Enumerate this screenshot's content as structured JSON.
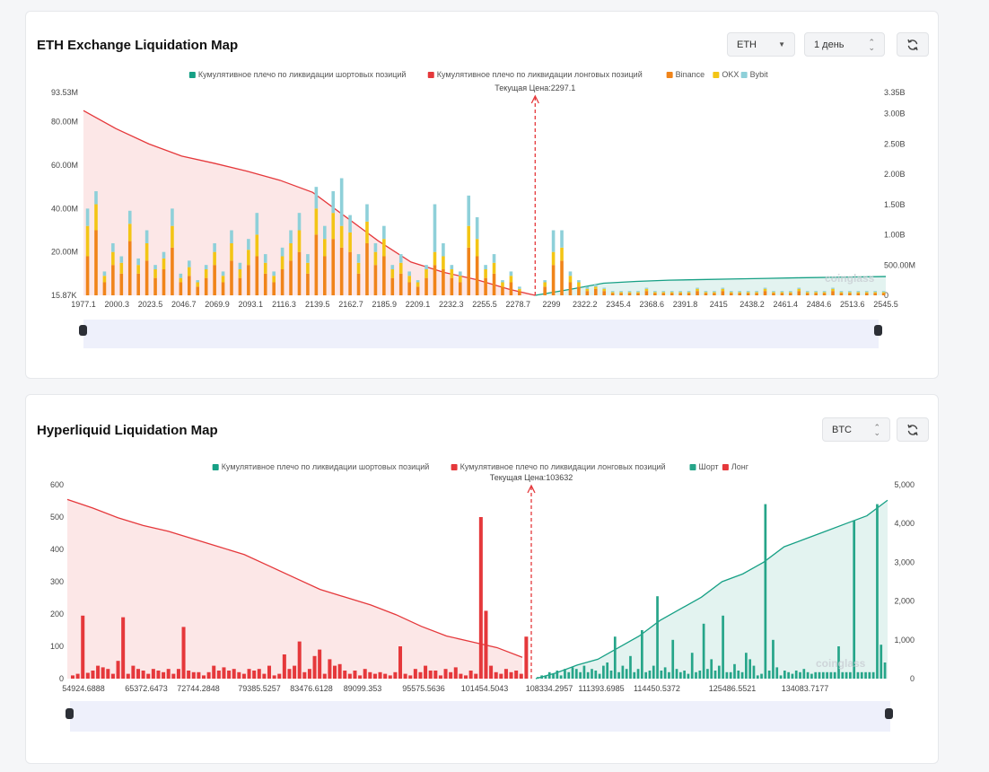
{
  "eth_card": {
    "title": "ETH Exchange Liquidation Map",
    "coin_select": "ETH",
    "period_select": "1 день",
    "refresh_icon": "refresh-icon"
  },
  "hl_card": {
    "title": "Hyperliquid Liquidation Map",
    "coin_select": "BTC",
    "refresh_icon": "refresh-icon"
  },
  "colors": {
    "short_cum": "#16a085",
    "long_cum": "#e5383b",
    "binance": "#f0841a",
    "okx": "#f3c515",
    "bybit": "#8ed0d9",
    "short_bar": "#26a589",
    "long_bar": "#e5383b",
    "current_price": "#e5383b"
  },
  "chart_data": [
    {
      "type": "bar",
      "title": "",
      "legend": [
        "Кумулятивное плечо по ликвидации шортовых позиций",
        "Кумулятивное плечо по ликвидации лонговых позиций",
        "Binance",
        "OKX",
        "Bybit"
      ],
      "legend_position": "top-center",
      "current_price_label": "Текущая Цена:2297.1",
      "current_price": 2297.1,
      "watermark": "coinglass",
      "x_tick_labels": [
        "1977.1",
        "2000.3",
        "2023.5",
        "2046.7",
        "2069.9",
        "2093.1",
        "2116.3",
        "2139.5",
        "2162.7",
        "2185.9",
        "2209.1",
        "2232.3",
        "2255.5",
        "2278.7",
        "2299",
        "2322.2",
        "2345.4",
        "2368.6",
        "2391.8",
        "2415",
        "2438.2",
        "2461.4",
        "2484.6",
        "2513.6",
        "2545.5"
      ],
      "y_left_tick_labels": [
        "93.53M",
        "80.00M",
        "60.00M",
        "40.00M",
        "20.00M",
        "15.87K"
      ],
      "y_right_tick_labels": [
        "3.35B",
        "3.00B",
        "2.50B",
        "2.00B",
        "1.50B",
        "1.00B",
        "500.00M",
        "0"
      ],
      "x_range": [
        1977.1,
        2545.5
      ],
      "y_left_range": [
        0,
        93.53
      ],
      "y_right_range": [
        0,
        3.35
      ],
      "units_left": "M",
      "units_right": "B",
      "series": [
        {
          "name": "Binance",
          "x": [
            1980,
            1986,
            1992,
            1998,
            2004,
            2010,
            2016,
            2022,
            2028,
            2034,
            2040,
            2046,
            2052,
            2058,
            2064,
            2070,
            2076,
            2082,
            2088,
            2094,
            2100,
            2106,
            2112,
            2118,
            2124,
            2130,
            2136,
            2142,
            2148,
            2154,
            2160,
            2166,
            2172,
            2178,
            2184,
            2190,
            2196,
            2202,
            2208,
            2214,
            2220,
            2226,
            2232,
            2238,
            2244,
            2250,
            2256,
            2262,
            2268,
            2274,
            2280,
            2286,
            2292,
            2304,
            2310,
            2316,
            2322,
            2328,
            2334,
            2340,
            2346,
            2352,
            2358,
            2364,
            2370,
            2376,
            2382,
            2388,
            2394,
            2400,
            2406,
            2412,
            2418,
            2424,
            2430,
            2436,
            2442,
            2448,
            2454,
            2460,
            2466,
            2472,
            2478,
            2484,
            2490,
            2496,
            2502,
            2508,
            2514,
            2520,
            2526,
            2532,
            2538,
            2544
          ],
          "values": [
            18,
            30,
            6,
            14,
            10,
            25,
            10,
            16,
            8,
            12,
            22,
            6,
            9,
            4,
            8,
            14,
            6,
            16,
            8,
            14,
            18,
            10,
            6,
            12,
            16,
            20,
            10,
            28,
            18,
            26,
            22,
            20,
            10,
            24,
            14,
            18,
            8,
            10,
            6,
            4,
            8,
            14,
            12,
            8,
            6,
            22,
            18,
            8,
            10,
            4,
            6,
            2,
            0,
            4,
            14,
            16,
            6,
            4,
            2,
            3,
            2,
            1,
            1,
            1,
            1,
            2,
            1,
            1,
            1,
            1,
            1,
            2,
            1,
            1,
            2,
            1,
            1,
            1,
            1,
            2,
            1,
            1,
            1,
            2,
            1,
            1,
            1,
            2,
            1,
            1,
            1,
            1,
            1,
            1
          ]
        },
        {
          "name": "OKX",
          "x": [
            1980,
            1986,
            1992,
            1998,
            2004,
            2010,
            2016,
            2022,
            2028,
            2034,
            2040,
            2046,
            2052,
            2058,
            2064,
            2070,
            2076,
            2082,
            2088,
            2094,
            2100,
            2106,
            2112,
            2118,
            2124,
            2130,
            2136,
            2142,
            2148,
            2154,
            2160,
            2166,
            2172,
            2178,
            2184,
            2190,
            2196,
            2202,
            2208,
            2214,
            2220,
            2226,
            2232,
            2238,
            2244,
            2250,
            2256,
            2262,
            2268,
            2274,
            2280,
            2286,
            2292,
            2304,
            2310,
            2316,
            2322,
            2328,
            2334,
            2340,
            2346,
            2352,
            2358,
            2364,
            2370,
            2376,
            2382,
            2388,
            2394,
            2400,
            2406,
            2412,
            2418,
            2424,
            2430,
            2436,
            2442,
            2448,
            2454,
            2460,
            2466,
            2472,
            2478,
            2484,
            2490,
            2496,
            2502,
            2508,
            2514,
            2520,
            2526,
            2532,
            2538,
            2544
          ],
          "values": [
            14,
            12,
            3,
            6,
            5,
            8,
            4,
            8,
            4,
            5,
            10,
            2,
            4,
            2,
            4,
            6,
            3,
            8,
            4,
            7,
            10,
            5,
            3,
            6,
            8,
            10,
            5,
            12,
            8,
            12,
            10,
            9,
            5,
            10,
            6,
            8,
            4,
            5,
            3,
            2,
            4,
            6,
            6,
            4,
            3,
            10,
            8,
            4,
            5,
            2,
            3,
            1,
            0,
            2,
            6,
            6,
            3,
            2,
            1,
            1,
            1,
            0.5,
            0.5,
            0.5,
            0.5,
            1,
            0.5,
            0.5,
            0.5,
            0.5,
            0.5,
            1,
            0.5,
            0.5,
            1,
            0.5,
            0.5,
            0.5,
            0.5,
            1,
            0.5,
            0.5,
            0.5,
            1,
            0.5,
            0.5,
            0.5,
            1,
            0.5,
            0.5,
            0.5,
            0.5,
            0.5,
            0.5
          ]
        },
        {
          "name": "Bybit",
          "x": [
            1980,
            1986,
            1992,
            1998,
            2004,
            2010,
            2016,
            2022,
            2028,
            2034,
            2040,
            2046,
            2052,
            2058,
            2064,
            2070,
            2076,
            2082,
            2088,
            2094,
            2100,
            2106,
            2112,
            2118,
            2124,
            2130,
            2136,
            2142,
            2148,
            2154,
            2160,
            2166,
            2172,
            2178,
            2184,
            2190,
            2196,
            2202,
            2208,
            2214,
            2220,
            2226,
            2232,
            2238,
            2244,
            2250,
            2256,
            2262,
            2268,
            2274,
            2280,
            2286,
            2292,
            2304,
            2310,
            2316,
            2322,
            2328,
            2334,
            2340,
            2346,
            2352,
            2358,
            2364,
            2370,
            2376,
            2382,
            2388,
            2394,
            2400,
            2406,
            2412,
            2418,
            2424,
            2430,
            2436,
            2442,
            2448,
            2454,
            2460,
            2466,
            2472,
            2478,
            2484,
            2490,
            2496,
            2502,
            2508,
            2514,
            2520,
            2526,
            2532,
            2538,
            2544
          ],
          "values": [
            8,
            6,
            2,
            4,
            3,
            6,
            3,
            6,
            2,
            3,
            8,
            2,
            3,
            1,
            2,
            4,
            2,
            6,
            3,
            5,
            10,
            4,
            2,
            4,
            6,
            8,
            4,
            10,
            6,
            10,
            22,
            8,
            4,
            8,
            4,
            6,
            2,
            4,
            2,
            1,
            2,
            22,
            6,
            2,
            2,
            14,
            10,
            2,
            4,
            1,
            2,
            1,
            0,
            1,
            10,
            8,
            2,
            1,
            1,
            1,
            0.5,
            0.5,
            0.5,
            0.5,
            0.5,
            0.5,
            0.5,
            0.5,
            0.5,
            0.5,
            0.5,
            0.5,
            0.5,
            0.5,
            0.5,
            0.5,
            0.5,
            0.5,
            0.5,
            0.5,
            0.5,
            0.5,
            0.5,
            0.5,
            0.5,
            0.5,
            0.5,
            0.5,
            0.5,
            0.5,
            0.5,
            0.5,
            0.5,
            0.5
          ]
        },
        {
          "name": "Кумулятивное плечо по ликвидации лонговых позиций",
          "x": [
            1977.1,
            2000.3,
            2023.5,
            2046.7,
            2069.9,
            2093.1,
            2116.3,
            2139.5,
            2162.7,
            2185.9,
            2209.1,
            2232.3,
            2255.5,
            2278.7,
            2297.1
          ],
          "values": [
            3.05,
            2.75,
            2.5,
            2.3,
            2.18,
            2.05,
            1.9,
            1.7,
            1.3,
            0.9,
            0.55,
            0.38,
            0.26,
            0.1,
            0.0
          ]
        },
        {
          "name": "Кумулятивное плечо по ликвидации шортовых позиций",
          "x": [
            2297.1,
            2322.2,
            2345.4,
            2368.6,
            2391.8,
            2415,
            2438.2,
            2461.4,
            2484.6,
            2513.6,
            2545.5
          ],
          "values": [
            0.0,
            0.1,
            0.2,
            0.23,
            0.25,
            0.26,
            0.27,
            0.28,
            0.29,
            0.3,
            0.31
          ]
        }
      ]
    },
    {
      "type": "bar",
      "title": "",
      "legend": [
        "Кумулятивное плечо по ликвидации шортовых позиций",
        "Кумулятивное плечо по ликвидации лонговых позиций",
        "Шорт",
        "Лонг"
      ],
      "legend_position": "top-center",
      "current_price_label": "Текущая Цена:103632",
      "current_price": 103632,
      "watermark": "coinglass",
      "x_tick_labels": [
        "54924.6888",
        "65372.6473",
        "72744.2848",
        "79385.5257",
        "83476.6128",
        "89099.353",
        "95575.5636",
        "101454.5043",
        "108334.2957",
        "111393.6985",
        "114450.5372",
        "125486.5521",
        "134083.7177"
      ],
      "y_left_tick_labels": [
        "600",
        "500",
        "400",
        "300",
        "200",
        "100",
        "0"
      ],
      "y_right_tick_labels": [
        "5,000",
        "4,000",
        "3,000",
        "2,000",
        "1,000",
        "0"
      ],
      "y_left_range": [
        0,
        600
      ],
      "y_right_range": [
        0,
        5000
      ],
      "series": [
        {
          "name": "Лонг",
          "values": [
            10,
            15,
            195,
            18,
            25,
            40,
            35,
            30,
            15,
            55,
            190,
            15,
            40,
            30,
            25,
            15,
            30,
            25,
            20,
            30,
            15,
            30,
            160,
            25,
            20,
            20,
            10,
            20,
            40,
            25,
            35,
            25,
            30,
            20,
            15,
            30,
            25,
            30,
            15,
            40,
            10,
            15,
            75,
            30,
            40,
            115,
            20,
            30,
            70,
            90,
            15,
            60,
            40,
            45,
            25,
            15,
            25,
            10,
            30,
            20,
            15,
            20,
            15,
            10,
            20,
            100,
            15,
            10,
            30,
            20,
            40,
            25,
            25,
            10,
            30,
            20,
            35,
            15,
            10,
            25,
            15,
            500,
            210,
            40,
            20,
            15,
            30,
            20,
            25,
            15,
            130
          ]
        },
        {
          "name": "Шорт",
          "values": [
            5,
            10,
            10,
            20,
            15,
            25,
            10,
            30,
            20,
            35,
            30,
            20,
            40,
            20,
            30,
            25,
            15,
            40,
            50,
            25,
            130,
            20,
            40,
            30,
            70,
            20,
            30,
            150,
            20,
            25,
            40,
            255,
            25,
            35,
            20,
            120,
            30,
            20,
            25,
            15,
            80,
            20,
            25,
            170,
            30,
            60,
            25,
            40,
            195,
            20,
            20,
            45,
            25,
            20,
            80,
            60,
            40,
            10,
            15,
            540,
            25,
            120,
            35,
            10,
            25,
            20,
            15,
            25,
            20,
            30,
            20,
            15,
            20,
            20,
            20,
            20,
            20,
            20,
            100,
            20,
            20,
            20,
            490,
            20,
            20,
            20,
            20,
            20,
            540,
            105,
            50
          ]
        },
        {
          "name": "Кумулятивное плечо по ликвидации лонговых позиций",
          "values": [
            4620,
            4400,
            4150,
            3950,
            3800,
            3600,
            3400,
            3200,
            2900,
            2600,
            2300,
            2100,
            1900,
            1650,
            1350,
            1100,
            950,
            800,
            550
          ]
        },
        {
          "name": "Кумулятивное плечо по ликвидации шортовых позиций",
          "values": [
            0,
            150,
            350,
            500,
            800,
            1100,
            1500,
            1800,
            2100,
            2500,
            2700,
            3000,
            3400,
            3600,
            3800,
            4000,
            4200,
            4600
          ]
        }
      ]
    }
  ]
}
